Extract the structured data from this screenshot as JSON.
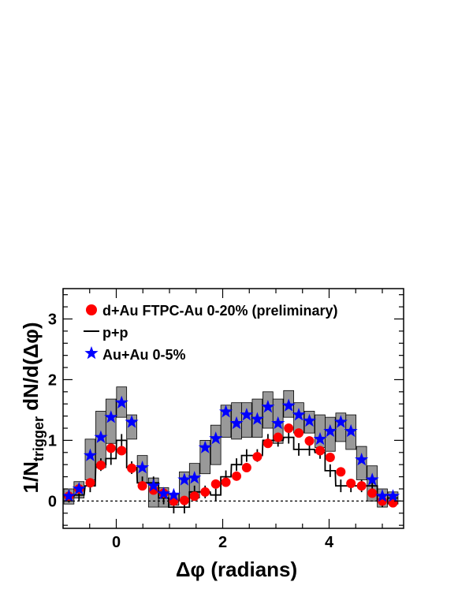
{
  "chart_data": {
    "type": "scatter",
    "xlabel": "Δφ (radians)",
    "ylabel": "1/N_trigger dN/d(Δφ)",
    "ylabel_main": "1/N",
    "ylabel_sub": "trigger",
    "ylabel_rest": " dN/d(Δφ)",
    "xlim": [
      -1.0,
      5.4
    ],
    "ylim": [
      -0.45,
      3.5
    ],
    "xticks": [
      0,
      2,
      4
    ],
    "xtick_labels": [
      "0",
      "2",
      "4"
    ],
    "yticks": [
      0,
      1,
      2,
      3
    ],
    "ytick_labels": [
      "0",
      "1",
      "2",
      "3"
    ],
    "zero_line": true,
    "legend_position": "top-left",
    "colors": {
      "dAu": "#ff0000",
      "AuAu": "#0000ff",
      "pp": "#000000",
      "band": "#999999"
    },
    "series": [
      {
        "name": "d+Au FTPC-Au 0-20% (preliminary)",
        "marker": "circle",
        "x": [
          -0.89,
          -0.7,
          -0.49,
          -0.29,
          -0.1,
          0.1,
          0.29,
          0.49,
          0.7,
          0.89,
          1.08,
          1.28,
          1.47,
          1.67,
          1.87,
          2.06,
          2.26,
          2.45,
          2.65,
          2.85,
          3.04,
          3.24,
          3.43,
          3.63,
          3.83,
          4.02,
          4.22,
          4.41,
          4.61,
          4.81,
          5.0,
          5.2
        ],
        "y": [
          0.08,
          0.2,
          0.3,
          0.59,
          0.87,
          0.83,
          0.54,
          0.25,
          0.18,
          0.13,
          0.0,
          0.01,
          0.08,
          0.15,
          0.28,
          0.31,
          0.41,
          0.55,
          0.73,
          0.95,
          1.05,
          1.2,
          1.12,
          0.99,
          0.83,
          0.72,
          0.48,
          0.29,
          0.25,
          0.13,
          0.0,
          -0.03
        ]
      },
      {
        "name": "p+p",
        "marker": "histogram",
        "x": [
          -0.89,
          -0.7,
          -0.49,
          -0.29,
          -0.1,
          0.1,
          0.29,
          0.49,
          0.7,
          0.89,
          1.08,
          1.28,
          1.47,
          1.67,
          1.87,
          2.06,
          2.26,
          2.45,
          2.65,
          2.85,
          3.04,
          3.24,
          3.43,
          3.63,
          3.83,
          4.02,
          4.22,
          4.41,
          4.61,
          4.81,
          5.0,
          5.2
        ],
        "y": [
          0.08,
          0.1,
          0.25,
          0.6,
          0.7,
          1.0,
          0.55,
          0.3,
          0.3,
          0.05,
          -0.1,
          -0.1,
          0.15,
          0.15,
          0.1,
          0.4,
          0.6,
          0.75,
          0.75,
          1.0,
          1.0,
          1.05,
          0.85,
          0.85,
          0.8,
          0.5,
          0.25,
          0.25,
          0.25,
          0.25,
          0.0,
          0.05
        ]
      },
      {
        "name": "Au+Au 0-5%",
        "marker": "star",
        "x": [
          -0.89,
          -0.7,
          -0.49,
          -0.29,
          -0.1,
          0.1,
          0.29,
          0.49,
          0.7,
          0.89,
          1.08,
          1.28,
          1.47,
          1.67,
          1.87,
          2.06,
          2.26,
          2.45,
          2.65,
          2.85,
          3.04,
          3.24,
          3.43,
          3.63,
          3.83,
          4.02,
          4.22,
          4.41,
          4.61,
          4.81,
          5.0,
          5.2
        ],
        "y": [
          0.08,
          0.2,
          0.75,
          1.05,
          1.38,
          1.62,
          1.3,
          0.55,
          0.25,
          0.12,
          0.1,
          0.35,
          0.38,
          0.88,
          1.03,
          1.47,
          1.28,
          1.42,
          1.35,
          1.55,
          1.28,
          1.57,
          1.42,
          1.32,
          1.02,
          1.15,
          1.3,
          1.15,
          0.68,
          0.35,
          0.08,
          0.08
        ],
        "band_low": [
          -0.05,
          0.05,
          0.35,
          0.55,
          0.95,
          1.38,
          1.02,
          0.3,
          -0.1,
          -0.1,
          -0.07,
          0.0,
          0.05,
          0.45,
          0.6,
          1.05,
          1.02,
          1.05,
          1.05,
          1.2,
          0.95,
          1.38,
          1.12,
          1.12,
          0.88,
          0.82,
          0.98,
          0.85,
          0.35,
          0.0,
          -0.1,
          -0.05
        ],
        "band_high": [
          0.2,
          0.32,
          1.02,
          1.48,
          1.68,
          1.88,
          1.42,
          0.75,
          0.38,
          0.22,
          0.12,
          0.48,
          0.62,
          1.0,
          1.25,
          1.58,
          1.62,
          1.62,
          1.68,
          1.8,
          1.68,
          1.82,
          1.62,
          1.48,
          1.42,
          1.38,
          1.45,
          1.42,
          0.9,
          0.58,
          0.2,
          0.15
        ]
      }
    ]
  }
}
